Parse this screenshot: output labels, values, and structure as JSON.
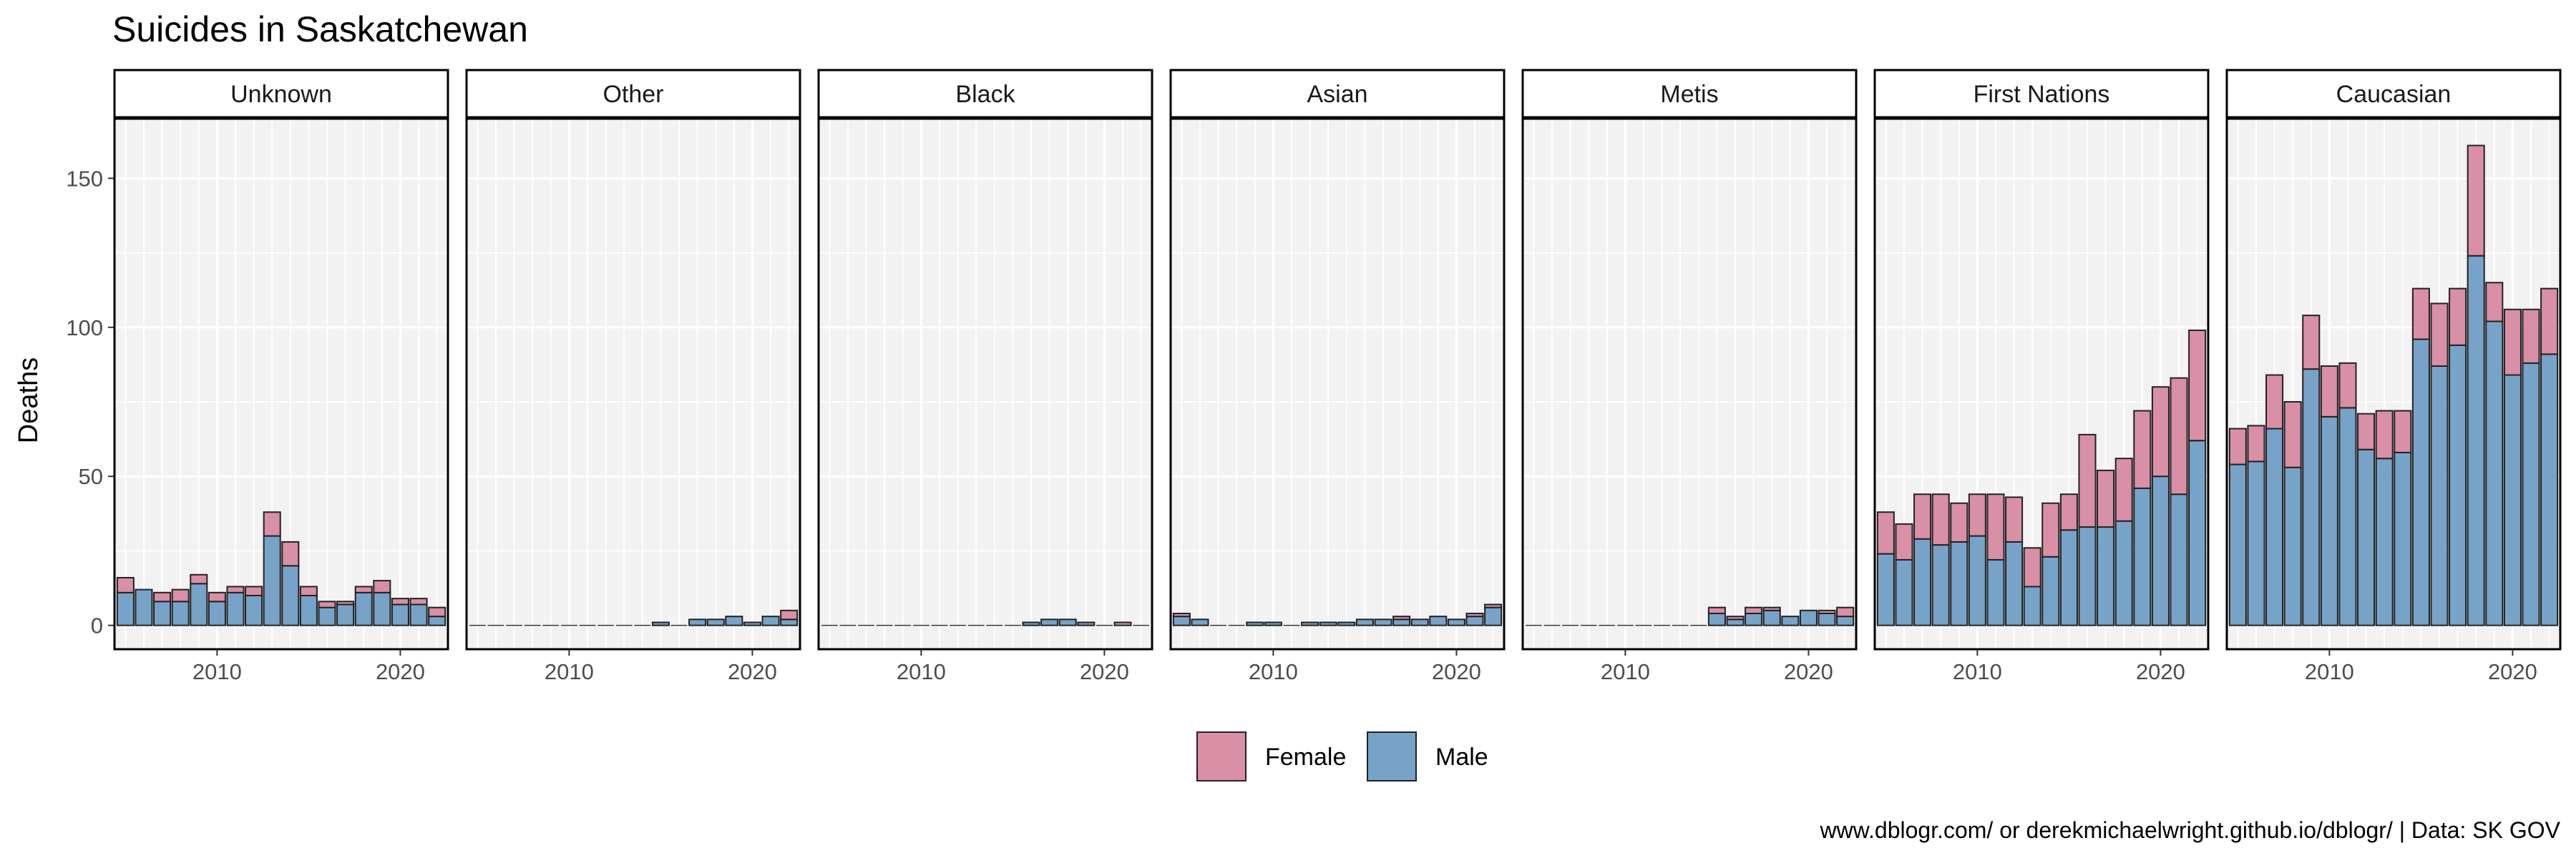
{
  "chart_data": {
    "type": "bar",
    "stacked": true,
    "title": "Suicides in Saskatchewan",
    "xlabel": "",
    "ylabel": "Deaths",
    "caption": "www.dblogr.com/ or derekmichaelwright.github.io/dblogr/ | Data: SK GOV",
    "years": [
      2005,
      2006,
      2007,
      2008,
      2009,
      2010,
      2011,
      2012,
      2013,
      2014,
      2015,
      2016,
      2017,
      2018,
      2019,
      2020,
      2021,
      2022
    ],
    "xlim": [
      2004.4,
      2022.6
    ],
    "x_ticks": [
      2010,
      2020
    ],
    "ylim": [
      -8,
      170
    ],
    "y_ticks": [
      0,
      50,
      100,
      150
    ],
    "grid": true,
    "legend_position": "bottom",
    "legend": [
      {
        "name": "Female",
        "color": "#d98fa6"
      },
      {
        "name": "Male",
        "color": "#78a3c9"
      }
    ],
    "panels": [
      {
        "name": "Unknown",
        "male": [
          11,
          12,
          8,
          8,
          14,
          8,
          11,
          10,
          30,
          20,
          10,
          6,
          7,
          11,
          11,
          7,
          7,
          3
        ],
        "female": [
          5,
          0,
          3,
          4,
          3,
          3,
          2,
          3,
          8,
          8,
          3,
          2,
          1,
          2,
          4,
          2,
          2,
          3
        ]
      },
      {
        "name": "Other",
        "male": [
          0,
          0,
          0,
          0,
          0,
          0,
          0,
          0,
          0,
          0,
          1,
          0,
          2,
          2,
          3,
          1,
          3,
          2
        ],
        "female": [
          0,
          0,
          0,
          0,
          0,
          0,
          0,
          0,
          0,
          0,
          0,
          0,
          0,
          0,
          0,
          0,
          0,
          3
        ]
      },
      {
        "name": "Black",
        "male": [
          0,
          0,
          0,
          0,
          0,
          0,
          0,
          0,
          0,
          0,
          0,
          1,
          2,
          2,
          1,
          0,
          0,
          0
        ],
        "female": [
          0,
          0,
          0,
          0,
          0,
          0,
          0,
          0,
          0,
          0,
          0,
          0,
          0,
          0,
          0,
          0,
          1,
          0
        ]
      },
      {
        "name": "Asian",
        "male": [
          3,
          2,
          0,
          0,
          1,
          1,
          0,
          1,
          1,
          1,
          2,
          2,
          2,
          2,
          3,
          2,
          3,
          6
        ],
        "female": [
          1,
          0,
          0,
          0,
          0,
          0,
          0,
          0,
          0,
          0,
          0,
          0,
          1,
          0,
          0,
          0,
          1,
          1
        ]
      },
      {
        "name": "Metis",
        "male": [
          0,
          0,
          0,
          0,
          0,
          0,
          0,
          0,
          0,
          0,
          4,
          2,
          4,
          5,
          3,
          5,
          4,
          3
        ],
        "female": [
          0,
          0,
          0,
          0,
          0,
          0,
          0,
          0,
          0,
          0,
          2,
          1,
          2,
          1,
          0,
          0,
          1,
          3
        ]
      },
      {
        "name": "First Nations",
        "male": [
          24,
          22,
          29,
          27,
          28,
          30,
          22,
          28,
          13,
          23,
          32,
          33,
          33,
          35,
          46,
          50,
          44,
          62
        ],
        "female": [
          14,
          12,
          15,
          17,
          13,
          14,
          22,
          15,
          13,
          18,
          12,
          31,
          19,
          21,
          26,
          30,
          39,
          37
        ]
      },
      {
        "name": "Caucasian",
        "male": [
          54,
          55,
          66,
          53,
          86,
          70,
          73,
          59,
          56,
          58,
          96,
          87,
          94,
          124,
          102,
          84,
          88,
          91
        ],
        "female": [
          12,
          12,
          18,
          22,
          18,
          17,
          15,
          12,
          16,
          14,
          17,
          21,
          19,
          37,
          13,
          22,
          18,
          22
        ]
      }
    ]
  }
}
